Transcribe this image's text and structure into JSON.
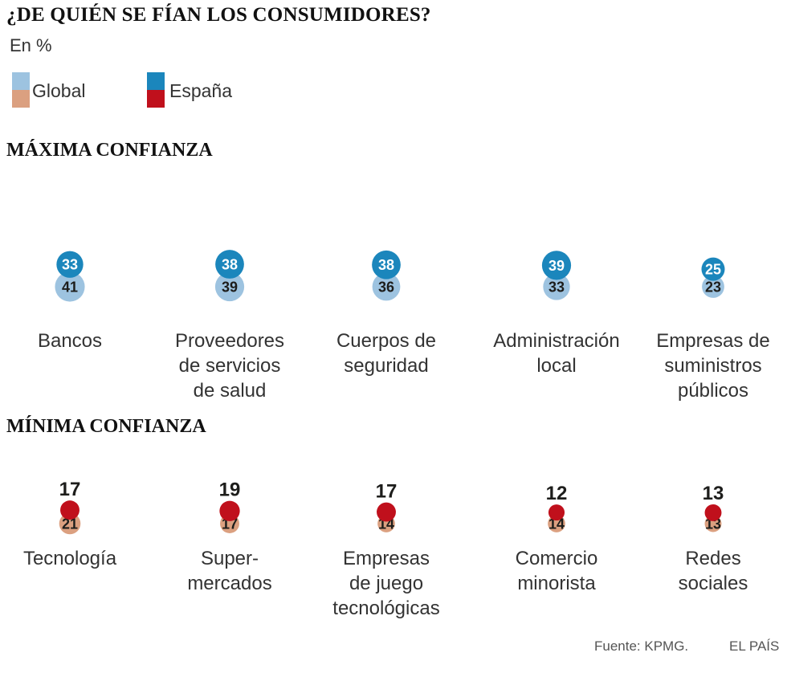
{
  "title": "¿DE QUIÉN SE FÍAN LOS CONSUMIDORES?",
  "subtitle": "En %",
  "legend": [
    {
      "label": "Global",
      "colors": [
        "#9dc3e0",
        "#dba080"
      ]
    },
    {
      "label": "España",
      "colors": [
        "#1b86bc",
        "#c0101c"
      ]
    }
  ],
  "colors": {
    "global_high": "#9dc3e0",
    "spain_high": "#1b86bc",
    "global_low": "#dba080",
    "spain_low": "#c0101c",
    "dark_text": "#1d1d1b",
    "light_text": "#ffffff"
  },
  "sections": {
    "max": "MÁXIMA CONFIANZA",
    "min": "MÍNIMA CONFIANZA"
  },
  "chart_data": [
    {
      "type": "bubble",
      "title": "MÁXIMA CONFIANZA",
      "unit": "%",
      "series": [
        {
          "name": "España",
          "values": [
            33,
            38,
            38,
            39,
            25
          ]
        },
        {
          "name": "Global",
          "values": [
            41,
            39,
            36,
            33,
            23
          ]
        }
      ],
      "categories": [
        [
          "Bancos"
        ],
        [
          "Proveedores",
          "de servicios",
          "de salud"
        ],
        [
          "Cuerpos de",
          "seguridad"
        ],
        [
          "Administración",
          "local"
        ],
        [
          "Empresas de",
          "suministros",
          "públicos"
        ]
      ]
    },
    {
      "type": "bubble",
      "title": "MÍNIMA CONFIANZA",
      "unit": "%",
      "series": [
        {
          "name": "España",
          "values": [
            17,
            19,
            17,
            12,
            13
          ]
        },
        {
          "name": "Global",
          "values": [
            21,
            17,
            14,
            14,
            13
          ]
        }
      ],
      "categories": [
        [
          "Tecnología"
        ],
        [
          "Super-",
          "mercados"
        ],
        [
          "Empresas",
          "de juego",
          "tecnológicas"
        ],
        [
          "Comercio",
          "minorista"
        ],
        [
          "Redes",
          "sociales"
        ]
      ]
    }
  ],
  "source": "Fuente: KPMG.",
  "publisher": "EL PAÍS"
}
